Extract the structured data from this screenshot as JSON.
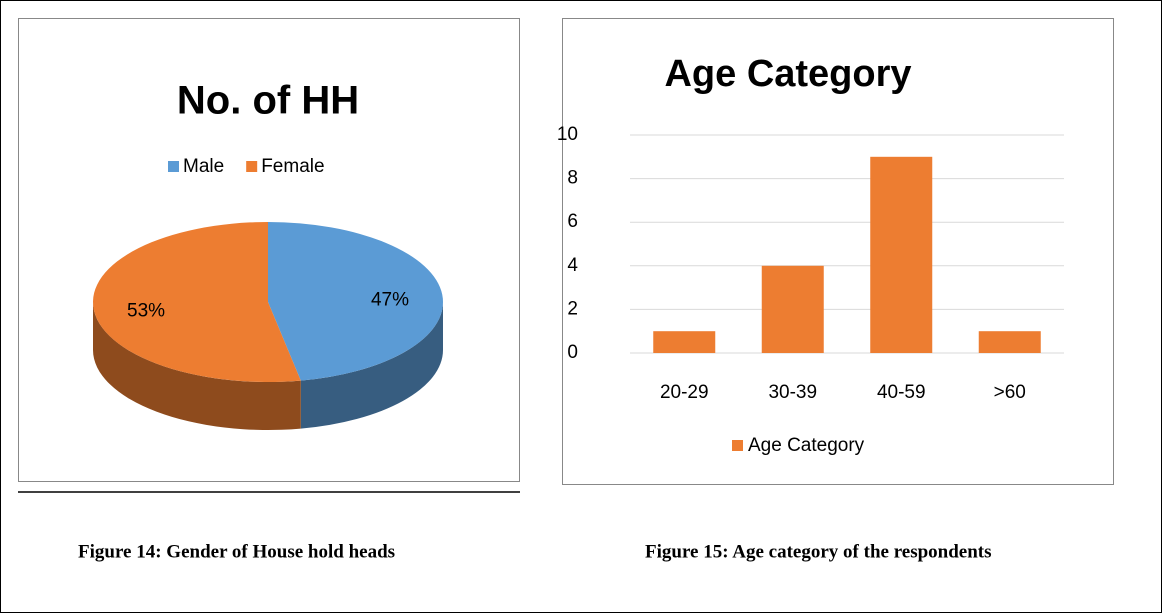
{
  "chart_data": [
    {
      "type": "pie3d",
      "title": "No. of HH",
      "categories": [
        "Male",
        "Female"
      ],
      "values": [
        47,
        53
      ],
      "value_labels": [
        "47%",
        "53%"
      ],
      "colors": [
        "#5b9bd5",
        "#ed7d31"
      ],
      "legend": "top"
    },
    {
      "type": "bar",
      "title": "Age Category",
      "categories": [
        "20-29",
        "30-39",
        "40-59",
        ">60"
      ],
      "series": [
        {
          "name": "Age Category",
          "color": "#ed7d31",
          "values": [
            1,
            4,
            9,
            1
          ]
        }
      ],
      "ylim": [
        0,
        10
      ],
      "yticks": [
        0,
        2,
        4,
        6,
        8,
        10
      ],
      "grid": true,
      "legend": "bottom"
    }
  ],
  "captions": [
    "Figure 14: Gender of House hold heads",
    "Figure 15: Age category of the respondents"
  ]
}
